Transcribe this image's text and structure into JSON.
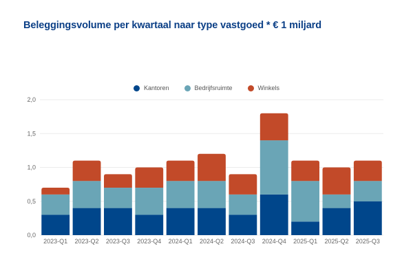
{
  "chart_data": {
    "type": "bar",
    "stacked": true,
    "title": "Beleggingsvolume per kwartaal naar type vastgoed * € 1 miljard",
    "xlabel": "",
    "ylabel": "",
    "ylim": [
      0,
      2
    ],
    "yticks": [
      "0,0",
      "0,5",
      "1,0",
      "1,5",
      "2,0"
    ],
    "ytick_values": [
      0,
      0.5,
      1,
      1.5,
      2
    ],
    "grid": true,
    "legend_position": "top-center",
    "categories": [
      "2023-Q1",
      "2023-Q2",
      "2023-Q3",
      "2023-Q4",
      "2024-Q1",
      "2024-Q2",
      "2024-Q3",
      "2024-Q4",
      "2025-Q1",
      "2025-Q2",
      "2025-Q3"
    ],
    "series": [
      {
        "name": "Kantoren",
        "color": "#00468b",
        "values": [
          0.3,
          0.4,
          0.4,
          0.3,
          0.4,
          0.4,
          0.3,
          0.6,
          0.2,
          0.4,
          0.5
        ]
      },
      {
        "name": "Bedrijfsruimte",
        "color": "#6aa5b6",
        "values": [
          0.3,
          0.4,
          0.3,
          0.4,
          0.4,
          0.4,
          0.3,
          0.8,
          0.6,
          0.2,
          0.3
        ]
      },
      {
        "name": "Winkels",
        "color": "#c24a29",
        "values": [
          0.1,
          0.3,
          0.2,
          0.3,
          0.3,
          0.4,
          0.3,
          0.4,
          0.3,
          0.4,
          0.3
        ]
      }
    ]
  }
}
